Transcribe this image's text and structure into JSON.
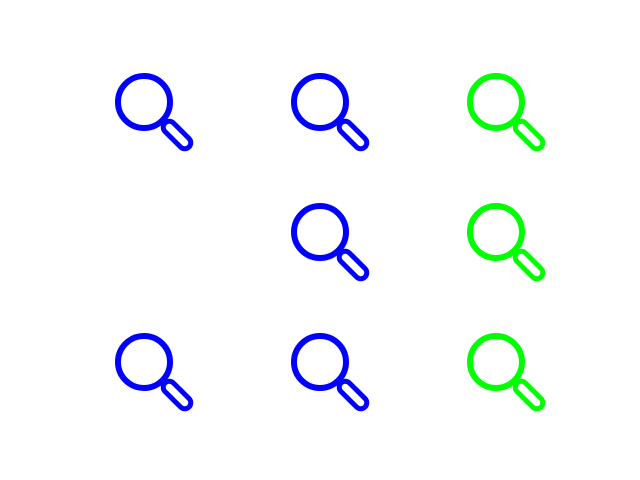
{
  "canvas": {
    "background": "#ffffff"
  },
  "grid": {
    "rows": 3,
    "columns": 3,
    "cells": [
      [
        {
          "icon": "magnifying-glass-icon",
          "color": "#0000ff"
        },
        {
          "icon": "magnifying-glass-icon",
          "color": "#0000ff"
        },
        {
          "icon": "magnifying-glass-icon",
          "color": "#00ff00"
        }
      ],
      [
        null,
        {
          "icon": "magnifying-glass-icon",
          "color": "#0000ff"
        },
        {
          "icon": "magnifying-glass-icon",
          "color": "#00ff00"
        }
      ],
      [
        {
          "icon": "magnifying-glass-icon",
          "color": "#0000ff"
        },
        {
          "icon": "magnifying-glass-icon",
          "color": "#0000ff"
        },
        {
          "icon": "magnifying-glass-icon",
          "color": "#00ff00"
        }
      ]
    ]
  }
}
